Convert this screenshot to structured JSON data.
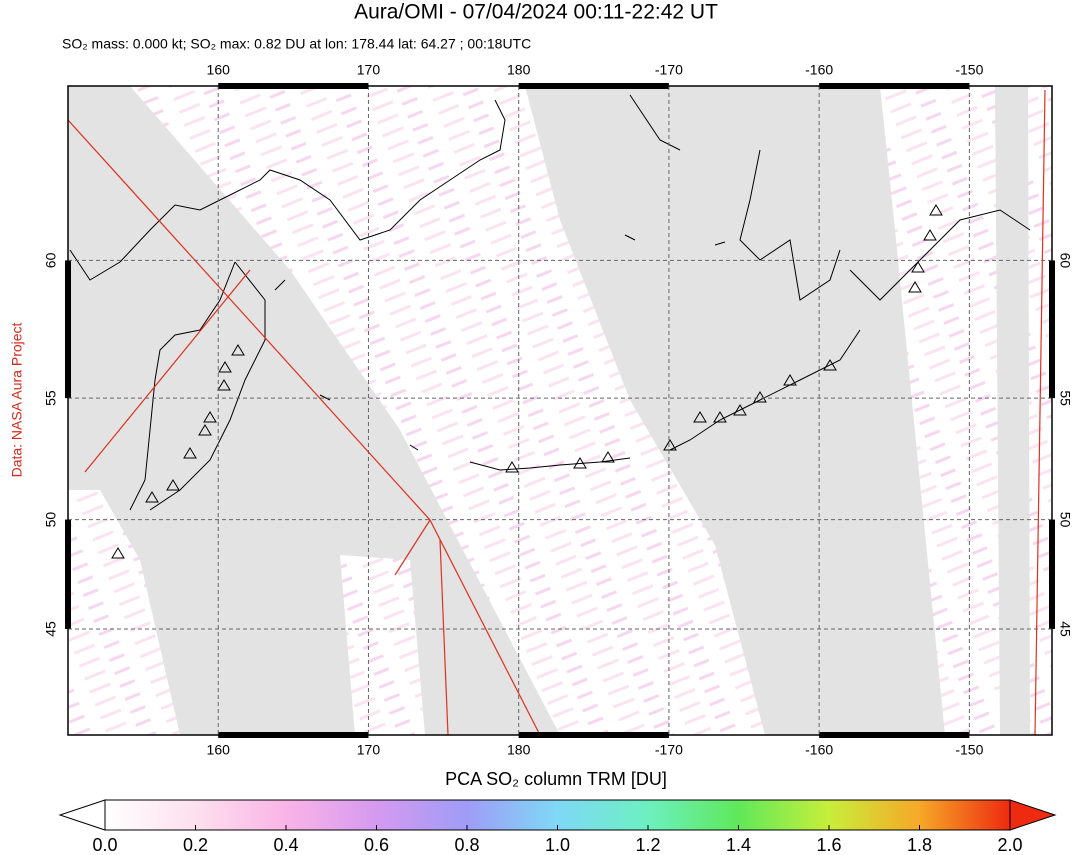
{
  "chart_data": {
    "type": "map",
    "title": "Aura/OMI - 07/04/2024 00:11-22:42 UT",
    "subtitle": "SO₂ mass: 0.000 kt; SO₂ max: 0.82 DU at lon: 178.44 lat: 64.27 ; 00:18UTC",
    "source": "Data: NASA Aura Project",
    "xlim": [
      150,
      215.5
    ],
    "xticks": [
      160,
      170,
      180,
      {
        "value": 190,
        "label": "-170"
      },
      {
        "value": 200,
        "label": "-160"
      },
      {
        "value": 210,
        "label": "-150"
      }
    ],
    "ylim": [
      39.7,
      65.4
    ],
    "yticks": [
      45,
      50,
      55,
      60
    ],
    "colorbar": {
      "label": "PCA SO₂ column TRM [DU]",
      "lim": [
        0,
        2
      ],
      "ticks": [
        {
          "value": 0,
          "label": "0.0"
        },
        {
          "value": 0.2,
          "label": "0.2"
        },
        {
          "value": 0.4,
          "label": "0.4"
        },
        {
          "value": 0.6,
          "label": "0.6"
        },
        {
          "value": 0.8,
          "label": "0.8"
        },
        {
          "value": 1,
          "label": "1.0"
        },
        {
          "value": 1.2,
          "label": "1.2"
        },
        {
          "value": 1.4,
          "label": "1.4"
        },
        {
          "value": 1.6,
          "label": "1.6"
        },
        {
          "value": 1.8,
          "label": "1.8"
        },
        {
          "value": 2,
          "label": "2.0"
        }
      ]
    }
  }
}
